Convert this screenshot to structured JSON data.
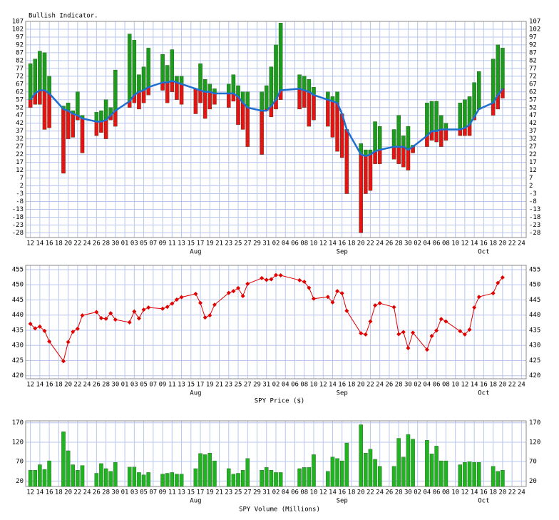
{
  "x_axis": {
    "xlim": [
      -1,
      105
    ],
    "x": [
      0,
      1,
      2,
      3,
      4,
      7,
      8,
      9,
      10,
      11,
      14,
      15,
      16,
      17,
      18,
      21,
      22,
      23,
      24,
      25,
      28,
      29,
      30,
      31,
      32,
      35,
      36,
      37,
      38,
      39,
      42,
      43,
      44,
      45,
      46,
      49,
      50,
      51,
      52,
      53,
      57,
      58,
      59,
      60,
      63,
      64,
      65,
      66,
      67,
      70,
      71,
      72,
      73,
      74,
      77,
      78,
      79,
      80,
      81,
      84,
      85,
      86,
      87,
      88,
      91,
      92,
      93,
      94,
      95,
      98,
      99,
      100
    ],
    "xticks": [
      {
        "value": 0,
        "label": "12"
      },
      {
        "value": 2,
        "label": "14"
      },
      {
        "value": 4,
        "label": "16"
      },
      {
        "value": 6,
        "label": "18"
      },
      {
        "value": 8,
        "label": "20"
      },
      {
        "value": 10,
        "label": "22"
      },
      {
        "value": 12,
        "label": "24"
      },
      {
        "value": 14,
        "label": "26"
      },
      {
        "value": 16,
        "label": "28"
      },
      {
        "value": 18,
        "label": "30"
      },
      {
        "value": 20,
        "label": "01"
      },
      {
        "value": 22,
        "label": "03"
      },
      {
        "value": 24,
        "label": "05"
      },
      {
        "value": 26,
        "label": "07"
      },
      {
        "value": 28,
        "label": "09"
      },
      {
        "value": 30,
        "label": "11"
      },
      {
        "value": 32,
        "label": "13"
      },
      {
        "value": 34,
        "label": "15"
      },
      {
        "value": 36,
        "label": "17"
      },
      {
        "value": 38,
        "label": "19"
      },
      {
        "value": 40,
        "label": "21"
      },
      {
        "value": 42,
        "label": "23"
      },
      {
        "value": 44,
        "label": "25"
      },
      {
        "value": 46,
        "label": "27"
      },
      {
        "value": 48,
        "label": "29"
      },
      {
        "value": 50,
        "label": "31"
      },
      {
        "value": 52,
        "label": "02"
      },
      {
        "value": 54,
        "label": "04"
      },
      {
        "value": 56,
        "label": "06"
      },
      {
        "value": 58,
        "label": "08"
      },
      {
        "value": 60,
        "label": "10"
      },
      {
        "value": 62,
        "label": "12"
      },
      {
        "value": 64,
        "label": "14"
      },
      {
        "value": 66,
        "label": "16"
      },
      {
        "value": 68,
        "label": "18"
      },
      {
        "value": 70,
        "label": "20"
      },
      {
        "value": 72,
        "label": "22"
      },
      {
        "value": 74,
        "label": "24"
      },
      {
        "value": 76,
        "label": "26"
      },
      {
        "value": 78,
        "label": "28"
      },
      {
        "value": 80,
        "label": "30"
      },
      {
        "value": 82,
        "label": "02"
      },
      {
        "value": 84,
        "label": "04"
      },
      {
        "value": 86,
        "label": "06"
      },
      {
        "value": 88,
        "label": "08"
      },
      {
        "value": 90,
        "label": "10"
      },
      {
        "value": 92,
        "label": "12"
      },
      {
        "value": 94,
        "label": "14"
      },
      {
        "value": 96,
        "label": "16"
      },
      {
        "value": 98,
        "label": "18"
      },
      {
        "value": 100,
        "label": "20"
      },
      {
        "value": 102,
        "label": "22"
      },
      {
        "value": 104,
        "label": "24"
      }
    ],
    "month_labels": [
      {
        "value": 35,
        "label": "Aug"
      },
      {
        "value": 66,
        "label": "Sep"
      },
      {
        "value": 96,
        "label": "Oct"
      }
    ]
  },
  "chart_data": [
    {
      "type": "bar",
      "title": "Bullish Indicator.",
      "ylim": [
        -31,
        107
      ],
      "yticks": [
        107,
        102,
        97,
        92,
        87,
        82,
        77,
        72,
        67,
        62,
        57,
        52,
        47,
        42,
        37,
        32,
        27,
        22,
        17,
        12,
        7,
        2,
        -3,
        -8,
        -13,
        -18,
        -23,
        -28
      ],
      "series": [
        {
          "color": "#1e9a1e",
          "values": [
            80,
            83,
            88,
            87,
            72,
            53,
            55,
            50,
            62,
            47,
            49,
            50,
            57,
            52,
            76,
            99,
            95,
            73,
            78,
            90,
            86,
            79,
            89,
            72,
            72,
            63,
            80,
            70,
            67,
            64,
            67,
            73,
            66,
            62,
            62,
            62,
            66,
            78,
            92,
            106,
            73,
            72,
            70,
            65,
            62,
            59,
            62,
            48,
            36,
            29,
            25,
            25,
            43,
            40,
            38,
            47,
            34,
            40,
            28,
            55,
            56,
            56,
            47,
            42,
            55,
            57,
            59,
            68,
            75,
            83,
            92,
            90
          ]
        },
        {
          "color": "#e41414",
          "values": [
            52,
            54,
            54,
            38,
            39,
            10,
            32,
            33,
            44,
            23,
            34,
            36,
            32,
            44,
            40,
            52,
            55,
            51,
            55,
            60,
            63,
            55,
            62,
            57,
            54,
            48,
            55,
            45,
            51,
            54,
            52,
            56,
            41,
            38,
            27,
            22,
            51,
            46,
            51,
            57,
            51,
            52,
            40,
            44,
            40,
            33,
            24,
            20,
            -3,
            -28,
            -3,
            -1,
            16,
            16,
            19,
            16,
            14,
            12,
            23,
            27,
            31,
            30,
            27,
            31,
            34,
            34,
            34,
            44,
            51,
            47,
            51,
            58
          ]
        },
        {
          "type": "line",
          "color": "#1f6fd0",
          "values": [
            57,
            61,
            63,
            63,
            61,
            51,
            50,
            48,
            47,
            45,
            43,
            43,
            44,
            47,
            50,
            56,
            60,
            62,
            63,
            65,
            68,
            68,
            69,
            68,
            67,
            64,
            63,
            62,
            62,
            61,
            61,
            61,
            59,
            55,
            52,
            50,
            50,
            53,
            57,
            63,
            64,
            63,
            62,
            60,
            57,
            56,
            55,
            48,
            38,
            22,
            21,
            22,
            24,
            25,
            27,
            27,
            27,
            25,
            27,
            34,
            37,
            37,
            38,
            38,
            38,
            39,
            41,
            46,
            51,
            55,
            60,
            64
          ]
        }
      ]
    },
    {
      "type": "line",
      "title": "SPY Price ($)",
      "ylim": [
        419,
        456.4
      ],
      "yticks": [
        455,
        450,
        445,
        440,
        435,
        430,
        425,
        420
      ],
      "series": [
        {
          "color": "#e00000",
          "values": [
            437.1,
            435.6,
            436.2,
            434.8,
            431.3,
            424.8,
            431.1,
            434.5,
            435.5,
            439.9,
            441.0,
            439.0,
            438.8,
            440.6,
            438.5,
            437.6,
            441.2,
            438.9,
            441.8,
            442.5,
            442.1,
            442.7,
            443.8,
            445.1,
            445.9,
            447.0,
            444.0,
            439.2,
            439.9,
            443.4,
            447.3,
            447.9,
            448.9,
            446.3,
            450.3,
            452.2,
            451.6,
            451.8,
            453.2,
            453.1,
            451.5,
            451.0,
            449.0,
            445.4,
            446.0,
            444.2,
            447.9,
            447.2,
            441.4,
            434.0,
            433.6,
            437.9,
            443.2,
            443.9,
            442.6,
            433.7,
            434.4,
            429.1,
            434.2,
            428.6,
            433.1,
            434.9,
            438.7,
            437.9,
            434.7,
            433.6,
            435.2,
            442.5,
            446.0,
            447.2,
            450.6,
            452.4
          ]
        }
      ]
    },
    {
      "type": "bar",
      "title": "SPY Volume (Millions)",
      "ylim": [
        6,
        175
      ],
      "yticks": [
        170,
        120,
        70,
        20
      ],
      "series": [
        {
          "color": "#22b322",
          "values": [
            48,
            48,
            62,
            50,
            72,
            147,
            98,
            62,
            48,
            60,
            40,
            65,
            52,
            45,
            68,
            56,
            56,
            42,
            36,
            42,
            38,
            40,
            42,
            38,
            38,
            52,
            91,
            88,
            92,
            72,
            52,
            38,
            40,
            48,
            78,
            48,
            55,
            48,
            42,
            42,
            52,
            55,
            55,
            88,
            45,
            82,
            78,
            72,
            118,
            165,
            92,
            102,
            76,
            58,
            58,
            130,
            82,
            140,
            128,
            125,
            90,
            110,
            72,
            72,
            62,
            68,
            70,
            68,
            68,
            58,
            45,
            48
          ]
        }
      ]
    }
  ]
}
